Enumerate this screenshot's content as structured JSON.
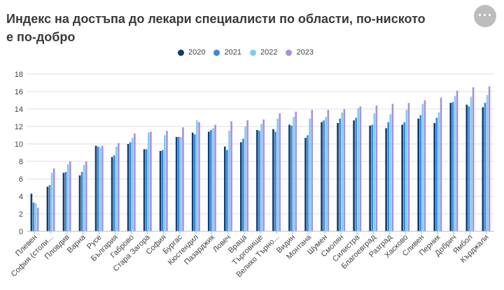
{
  "title": "Индекс на достъпа до лекари специалисти по области, по-ниското е по-добро",
  "menu_icon": "more-horizontal-icon",
  "colors": {
    "2020": "#0f3c6e",
    "2021": "#3a86df",
    "2022": "#7fcdf0",
    "2023": "#a98fe0",
    "grid": "#dcdcdc"
  },
  "chart_data": {
    "type": "bar",
    "title": "Индекс на достъпа до лекари специалисти по области, по-ниското е по-добро",
    "xlabel": "",
    "ylabel": "",
    "ylim": [
      0,
      18
    ],
    "yticks": [
      0,
      2,
      4,
      6,
      8,
      10,
      12,
      14,
      16,
      18
    ],
    "grid": true,
    "legend_position": "top",
    "categories": [
      "Плевен",
      "София (столица)",
      "Пловдив",
      "Варна",
      "Русе",
      "България",
      "Габрово",
      "Стара Загора",
      "София",
      "Бургас",
      "Кюстендил",
      "Пазарджик",
      "Ловеч",
      "Враца",
      "Търговище",
      "Велико Търново",
      "Видин",
      "Монтана",
      "Шумен",
      "Смолян",
      "Силистра",
      "Благоевград",
      "Разград",
      "Хасково",
      "Сливен",
      "Перник",
      "Добрич",
      "Ямбол",
      "Кърджали"
    ],
    "category_labels": [
      "Плевен",
      "София (столи...",
      "Пловдив",
      "Варна",
      "Русе",
      "България",
      "Габрово",
      "Стара Загора",
      "София",
      "Бургас",
      "Кюстендил",
      "Пазарджик",
      "Ловеч",
      "Враца",
      "Търговище",
      "Велико Търно...",
      "Видин",
      "Монтана",
      "Шумен",
      "Смолян",
      "Силистра",
      "Благоевград",
      "Разград",
      "Хасково",
      "Сливен",
      "Перник",
      "Добрич",
      "Ямбол",
      "Кърджали"
    ],
    "series": [
      {
        "name": "2020",
        "values": [
          4.3,
          5.1,
          6.7,
          6.4,
          9.8,
          8.5,
          10.0,
          9.4,
          9.2,
          10.8,
          11.3,
          11.4,
          9.7,
          10.2,
          11.6,
          11.7,
          12.2,
          10.7,
          12.5,
          12.4,
          12.7,
          12.1,
          11.8,
          12.2,
          12.9,
          12.4,
          14.7,
          14.5,
          14.2
        ]
      },
      {
        "name": "2021",
        "values": [
          3.3,
          5.3,
          6.8,
          6.8,
          9.7,
          8.7,
          10.2,
          9.4,
          9.3,
          10.8,
          11.1,
          11.6,
          9.3,
          10.6,
          11.5,
          11.4,
          12.1,
          11.0,
          12.7,
          12.9,
          13.0,
          12.2,
          12.5,
          12.5,
          13.3,
          13.0,
          14.8,
          14.3,
          14.7
        ]
      },
      {
        "name": "2022",
        "values": [
          3.2,
          6.7,
          7.7,
          7.6,
          9.6,
          9.7,
          10.7,
          11.3,
          11.0,
          10.8,
          12.7,
          11.8,
          11.5,
          12.0,
          12.3,
          12.9,
          13.1,
          12.9,
          13.1,
          13.6,
          14.1,
          13.5,
          13.4,
          13.9,
          14.6,
          13.6,
          15.5,
          15.4,
          15.6
        ]
      },
      {
        "name": "2023",
        "values": [
          2.7,
          7.2,
          8.0,
          8.0,
          9.8,
          10.1,
          11.2,
          11.4,
          11.5,
          11.9,
          12.5,
          12.2,
          12.6,
          12.7,
          12.8,
          13.5,
          13.7,
          13.9,
          13.9,
          14.0,
          14.3,
          14.4,
          14.6,
          14.7,
          15.0,
          15.3,
          16.1,
          16.5,
          16.6
        ]
      }
    ]
  }
}
